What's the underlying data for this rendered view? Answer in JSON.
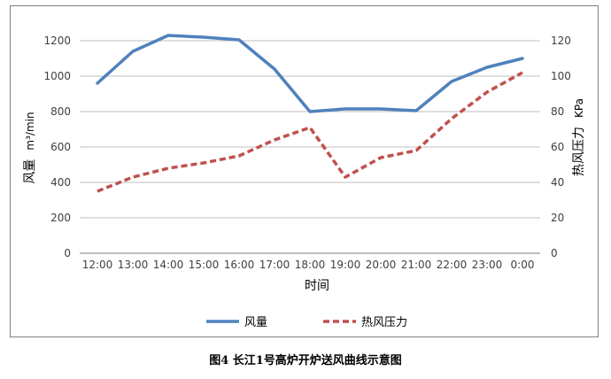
{
  "caption": "图4    长江1号高炉开炉送风曲线示意图",
  "chart_data": {
    "type": "line",
    "categories": [
      "12:00",
      "13:00",
      "14:00",
      "15:00",
      "16:00",
      "17:00",
      "18:00",
      "19:00",
      "20:00",
      "21:00",
      "22:00",
      "23:00",
      "0:00"
    ],
    "series": [
      {
        "name": "风量",
        "axis": "left",
        "color": "#4f81bd",
        "style": "solid",
        "values": [
          960,
          1140,
          1230,
          1220,
          1205,
          1040,
          800,
          815,
          815,
          805,
          970,
          1050,
          1100
        ]
      },
      {
        "name": "热风压力",
        "axis": "right",
        "color": "#c0504d",
        "style": "dashed",
        "values": [
          35,
          43,
          48,
          51,
          55,
          64,
          71,
          43,
          54,
          58,
          76,
          91,
          102
        ]
      }
    ],
    "xlabel": "时间",
    "ylabel_left": "风量 m³/min",
    "ylabel_left_main": "风量",
    "ylabel_left_unit": "m³/min",
    "ylabel_right": "热风压力 KPa",
    "ylabel_right_main": "热风压力",
    "ylabel_right_unit": "KPa",
    "ylim_left": [
      0,
      1200
    ],
    "yticks_left": [
      0,
      200,
      400,
      600,
      800,
      1000,
      1200
    ],
    "ylim_right": [
      0,
      120
    ],
    "yticks_right": [
      0,
      20,
      40,
      60,
      80,
      100,
      120
    ],
    "grid": true,
    "legend": "bottom"
  }
}
